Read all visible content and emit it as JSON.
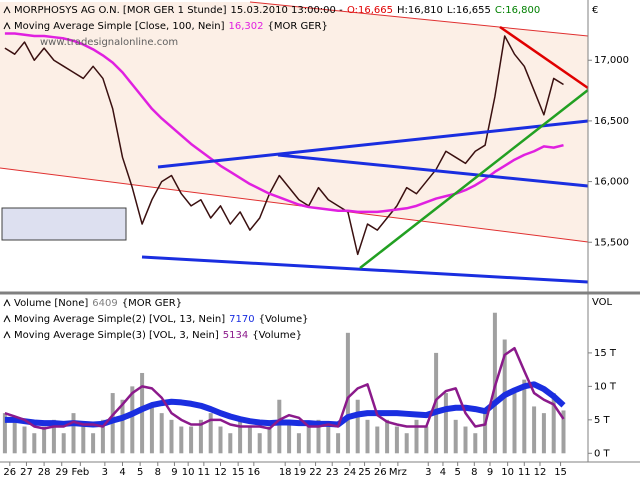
{
  "chart_data": [
    {
      "type": "line",
      "y_unit": "€",
      "header_text": "15.03.2010 13:00:00 -",
      "ohlc": [
        "O:16,665",
        "H:16,810",
        "L:16,655",
        "C:16,800"
      ],
      "ohlc_colors": [
        "#e00000",
        "#000000",
        "#000000",
        "#008000"
      ],
      "watermark": "www.tradesignalonline.com",
      "x": [
        0,
        1,
        2,
        3,
        4,
        5,
        6,
        7,
        8,
        9,
        10,
        11,
        12,
        13,
        14,
        15,
        16,
        17,
        18,
        19,
        20,
        21,
        22,
        23,
        24,
        25,
        26,
        27,
        28,
        29,
        30,
        31,
        32,
        33,
        34,
        35,
        36,
        37,
        38,
        39,
        40,
        41,
        42,
        43,
        44,
        45,
        46,
        47,
        48,
        49,
        50,
        51,
        52,
        53,
        54,
        55,
        56,
        57
      ],
      "xlim": [
        -0.5,
        59.5
      ],
      "ylim": [
        15.09,
        17.48
      ],
      "yticks": [
        {
          "value": 15.5,
          "label": "15,500"
        },
        {
          "value": 16,
          "label": "16,000"
        },
        {
          "value": 16.5,
          "label": "16,500"
        },
        {
          "value": 17,
          "label": "17,000"
        }
      ],
      "series": [
        {
          "name": "MORPHOSYS AG O.N. [MOR GER  1 Stunde]",
          "color": "#3a1010",
          "width": 1.5,
          "values": [
            17.1,
            17.05,
            17.15,
            17.0,
            17.1,
            17.0,
            16.95,
            16.9,
            16.85,
            16.95,
            16.85,
            16.6,
            16.2,
            15.95,
            15.65,
            15.85,
            16.0,
            16.05,
            15.9,
            15.8,
            15.85,
            15.7,
            15.8,
            15.65,
            15.75,
            15.6,
            15.7,
            15.9,
            16.05,
            15.95,
            15.85,
            15.8,
            15.95,
            15.85,
            15.8,
            15.75,
            15.4,
            15.65,
            15.6,
            15.7,
            15.8,
            15.95,
            15.9,
            16.0,
            16.1,
            16.25,
            16.2,
            16.15,
            16.25,
            16.3,
            16.7,
            17.2,
            17.05,
            16.95,
            16.75,
            16.55,
            16.85,
            16.8
          ]
        },
        {
          "name": "Moving Average Simple [Close, 100, Nein]",
          "value_label": "16,302",
          "tag": "{MOR GER}",
          "color": "#e020e0",
          "width": 2.5,
          "values": [
            17.22,
            17.22,
            17.21,
            17.2,
            17.2,
            17.19,
            17.18,
            17.16,
            17.13,
            17.09,
            17.04,
            16.98,
            16.9,
            16.8,
            16.7,
            16.6,
            16.52,
            16.45,
            16.38,
            16.31,
            16.25,
            16.19,
            16.13,
            16.08,
            16.03,
            15.98,
            15.94,
            15.9,
            15.87,
            15.84,
            15.81,
            15.79,
            15.78,
            15.77,
            15.76,
            15.76,
            15.75,
            15.75,
            15.75,
            15.76,
            15.77,
            15.78,
            15.8,
            15.83,
            15.86,
            15.88,
            15.9,
            15.93,
            15.97,
            16.02,
            16.08,
            16.13,
            16.18,
            16.22,
            16.25,
            16.29,
            16.28,
            16.3
          ]
        }
      ]
    },
    {
      "type": "bar",
      "y_unit": "VOL",
      "x": [
        0,
        1,
        2,
        3,
        4,
        5,
        6,
        7,
        8,
        9,
        10,
        11,
        12,
        13,
        14,
        15,
        16,
        17,
        18,
        19,
        20,
        21,
        22,
        23,
        24,
        25,
        26,
        27,
        28,
        29,
        30,
        31,
        32,
        33,
        34,
        35,
        36,
        37,
        38,
        39,
        40,
        41,
        42,
        43,
        44,
        45,
        46,
        47,
        48,
        49,
        50,
        51,
        52,
        53,
        54,
        55,
        56,
        57
      ],
      "xlim": [
        -0.5,
        59.5
      ],
      "ylim": [
        -1.3,
        23.5
      ],
      "yticks": [
        {
          "value": 0,
          "label": "0 T"
        },
        {
          "value": 5,
          "label": "5 T"
        },
        {
          "value": 10,
          "label": "10 T"
        },
        {
          "value": 15,
          "label": "15 T"
        }
      ],
      "xticks": [
        {
          "value": 0.5,
          "label": "26"
        },
        {
          "value": 2.2,
          "label": "27"
        },
        {
          "value": 4,
          "label": "28"
        },
        {
          "value": 5.8,
          "label": "29"
        },
        {
          "value": 7.7,
          "label": "Feb"
        },
        {
          "value": 10.2,
          "label": "3"
        },
        {
          "value": 12,
          "label": "4"
        },
        {
          "value": 13.8,
          "label": "5"
        },
        {
          "value": 15.6,
          "label": "8"
        },
        {
          "value": 17.3,
          "label": "9"
        },
        {
          "value": 18.7,
          "label": "10"
        },
        {
          "value": 20.3,
          "label": "11"
        },
        {
          "value": 22,
          "label": "12"
        },
        {
          "value": 23.8,
          "label": "15"
        },
        {
          "value": 25.4,
          "label": "16"
        },
        {
          "value": 28.6,
          "label": "18"
        },
        {
          "value": 30.1,
          "label": "19"
        },
        {
          "value": 31.7,
          "label": "22"
        },
        {
          "value": 33.4,
          "label": "23"
        },
        {
          "value": 35.2,
          "label": "24"
        },
        {
          "value": 36.7,
          "label": "25"
        },
        {
          "value": 38.3,
          "label": "26"
        },
        {
          "value": 40.1,
          "label": "Mrz"
        },
        {
          "value": 43.2,
          "label": "3"
        },
        {
          "value": 44.7,
          "label": "4"
        },
        {
          "value": 46.2,
          "label": "5"
        },
        {
          "value": 47.9,
          "label": "8"
        },
        {
          "value": 49.5,
          "label": "9"
        },
        {
          "value": 51.3,
          "label": "10"
        },
        {
          "value": 53,
          "label": "11"
        },
        {
          "value": 54.6,
          "label": "12"
        },
        {
          "value": 56.7,
          "label": "15"
        }
      ],
      "series": [
        {
          "name": "Volume [None]",
          "value_label": "6409",
          "tag": "{MOR GER}",
          "kind": "bar",
          "color": "#a0a0a0",
          "values": [
            6,
            5,
            4,
            3,
            4,
            5,
            3,
            6,
            4,
            3,
            5,
            9,
            8,
            10,
            12,
            7,
            6,
            5,
            4,
            4,
            5,
            6,
            4,
            3,
            5,
            4,
            3,
            4,
            8,
            5,
            3,
            4,
            5,
            4,
            3,
            18,
            8,
            5,
            4,
            5,
            4,
            3,
            5,
            4,
            15,
            9,
            5,
            4,
            3,
            6,
            21,
            17,
            9,
            11,
            7,
            6,
            9,
            6.4
          ]
        },
        {
          "name": "Moving Average Simple(2) [VOL, 13, Nein]",
          "value_label": "7170",
          "tag": "{Volume}",
          "kind": "line",
          "color": "#1a2ee0",
          "width": 6,
          "values": [
            5,
            5,
            4.8,
            4.6,
            4.5,
            4.5,
            4.4,
            4.5,
            4.4,
            4.3,
            4.4,
            4.9,
            5.3,
            5.9,
            6.6,
            7.2,
            7.5,
            7.7,
            7.6,
            7.4,
            7.1,
            6.6,
            6,
            5.5,
            5.1,
            4.8,
            4.6,
            4.5,
            4.6,
            4.6,
            4.5,
            4.5,
            4.4,
            4.4,
            4.3,
            5.4,
            5.8,
            6,
            6,
            6,
            6,
            5.9,
            5.8,
            5.7,
            6.2,
            6.6,
            6.8,
            6.8,
            6.6,
            6.3,
            7.5,
            8.7,
            9.4,
            10,
            10.3,
            9.6,
            8.5,
            7.17
          ]
        },
        {
          "name": "Moving Average Simple(3) [VOL, 3, Nein]",
          "value_label": "5134",
          "tag": "{Volume}",
          "kind": "line",
          "color": "#8b1a8b",
          "width": 2.5,
          "values": [
            6,
            5.5,
            5,
            4,
            3.7,
            4,
            4,
            4.7,
            4.3,
            4.3,
            4,
            5.7,
            7.3,
            9,
            10,
            9.7,
            8.3,
            6,
            5,
            4.3,
            4.3,
            5,
            5,
            4.3,
            4,
            4,
            4,
            3.7,
            5,
            5.7,
            5.3,
            4,
            4,
            4.3,
            4,
            8.3,
            9.7,
            10.3,
            5.7,
            4.7,
            4.3,
            4,
            4,
            4,
            8,
            9.3,
            9.7,
            6,
            4,
            4.3,
            10,
            14.7,
            15.7,
            12.3,
            9,
            8,
            7.3,
            5.134
          ]
        }
      ]
    }
  ]
}
